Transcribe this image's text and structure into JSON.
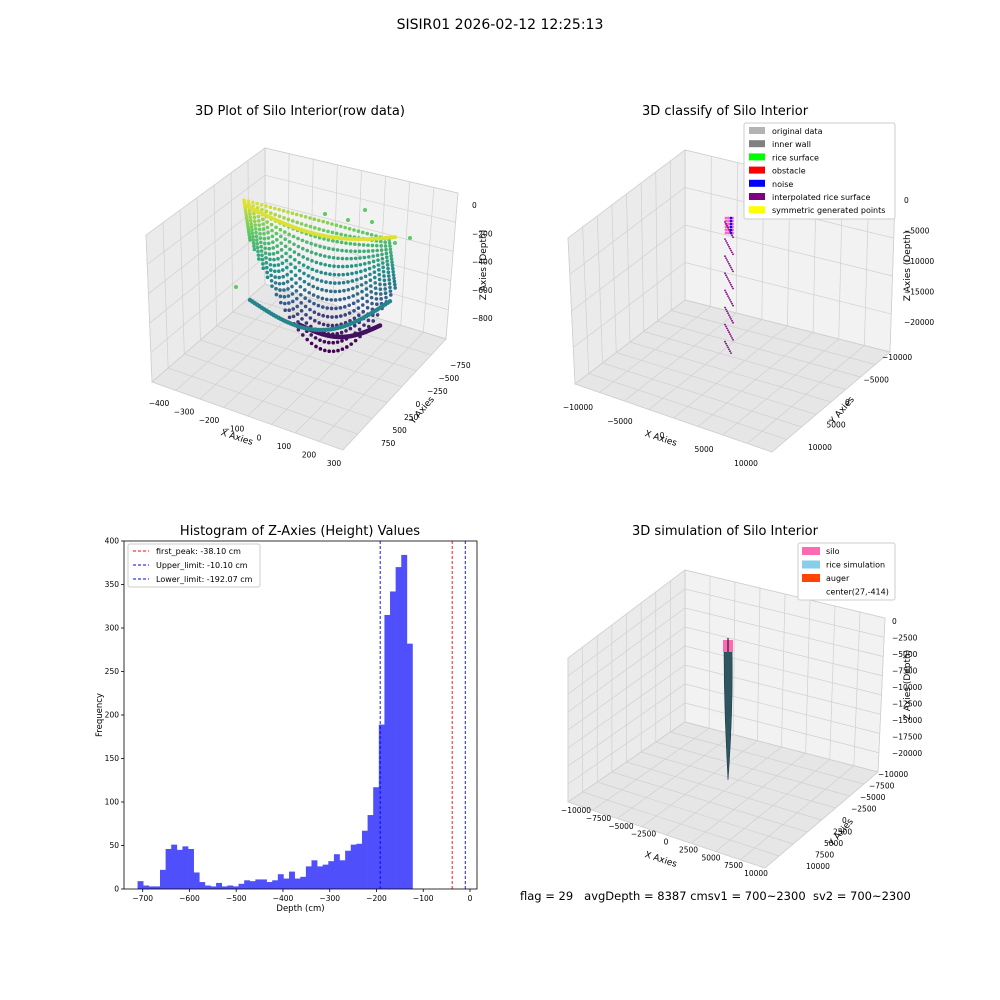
{
  "figure_title": "SISIR01 2026-02-12 12:25:13",
  "status_line": {
    "flag": "flag = 29",
    "avg_depth": "avgDepth = 8387 cm",
    "sv1": "sv1 = 700~2300",
    "sv2": "sv2 = 700~2300"
  },
  "colors": {
    "hist_bar": "#4f4ffb",
    "peak_line": "#ff0000",
    "limit_line": "#0000ff",
    "original_data": "#b3b3b3",
    "inner_wall": "#808080",
    "rice_surface": "#00ff00",
    "obstacle": "#ff0000",
    "noise": "#0000ff",
    "interpolated_rice_surface": "#800080",
    "symmetric_generated_points": "#ffff00",
    "silo": "#ff69b4",
    "rice_simulation": "#87ceeb",
    "auger": "#ff4500"
  },
  "chart_data": [
    {
      "type": "scatter",
      "title": "3D Plot of Silo Interior(row data)",
      "xlabel": "X Axies",
      "ylabel": "Y Axies",
      "zlabel": "Z Axies (Depth)",
      "x_ticks": [
        "−400",
        "−300",
        "−200",
        "−100",
        "0",
        "100",
        "200",
        "300"
      ],
      "y_ticks": [
        "−750",
        "−500",
        "−250",
        "0",
        "250",
        "500",
        "750"
      ],
      "z_ticks": [
        "0",
        "−200",
        "−400",
        "−600",
        "−800"
      ],
      "xlim": [
        -450,
        300
      ],
      "ylim": [
        -800,
        800
      ],
      "zlim": [
        -900,
        0
      ],
      "colormap": "viridis"
    },
    {
      "type": "scatter",
      "title": "3D classify of Silo Interior",
      "xlabel": "X Axies",
      "ylabel": "Y Axies",
      "zlabel": "Z Axies (Depth)",
      "x_ticks": [
        "−10000",
        "−5000",
        "0",
        "5000",
        "10000"
      ],
      "y_ticks": [
        "−10000",
        "−5000",
        "0",
        "5000",
        "10000"
      ],
      "z_ticks": [
        "0",
        "−5000",
        "−10000",
        "−15000",
        "−20000"
      ],
      "legend": [
        "original data",
        "inner wall",
        "rice surface",
        "obstacle",
        "noise",
        "interpolated rice surface",
        "symmetric generated points"
      ],
      "legend_position": "top-right"
    },
    {
      "type": "bar",
      "title": "Histogram of Z-Axies (Height) Values",
      "xlabel": "Depth (cm)",
      "ylabel": "Frequency",
      "xlim": [
        -740,
        15
      ],
      "ylim": [
        0,
        400
      ],
      "x_ticks": [
        -700,
        -600,
        -500,
        -400,
        -300,
        -200,
        -100,
        0
      ],
      "y_ticks": [
        0,
        50,
        100,
        150,
        200,
        250,
        300,
        350,
        400
      ],
      "bin_start": -711,
      "bin_width": 12,
      "values": [
        9,
        4,
        3,
        3,
        22,
        46,
        51,
        45,
        49,
        46,
        19,
        8,
        4,
        3,
        7,
        3,
        4,
        3,
        6,
        10,
        9,
        11,
        11,
        8,
        10,
        17,
        12,
        20,
        12,
        14,
        26,
        33,
        26,
        28,
        32,
        40,
        33,
        44,
        51,
        52,
        67,
        85,
        117,
        189,
        315,
        342,
        370,
        384,
        282
      ],
      "lines": [
        {
          "name": "first_peak: -38.10 cm",
          "x": -38.1,
          "style": "red-dashed"
        },
        {
          "name": "Upper_limit: -10.10 cm",
          "x": -10.1,
          "style": "blue-dashed"
        },
        {
          "name": "Lower_limit: -192.07 cm",
          "x": -192.07,
          "style": "blue-dashed"
        }
      ],
      "legend_position": "top-left"
    },
    {
      "type": "scatter",
      "title": "3D simulation of Silo Interior",
      "xlabel": "X Axies",
      "ylabel": "Y Axies",
      "zlabel": "Z Axies (Depth)",
      "x_ticks": [
        "−10000",
        "−7500",
        "−5000",
        "−2500",
        "0",
        "2500",
        "5000",
        "7500",
        "10000"
      ],
      "y_ticks": [
        "−10000",
        "−7500",
        "−5000",
        "−2500",
        "0",
        "2500",
        "5000",
        "7500",
        "10000"
      ],
      "z_ticks": [
        "0",
        "−2500",
        "−5000",
        "−7500",
        "−10000",
        "−12500",
        "−15000",
        "−17500",
        "−20000"
      ],
      "legend": [
        "silo",
        "rice simulation",
        "auger",
        "center(27,-414)"
      ],
      "legend_position": "top-right"
    }
  ]
}
